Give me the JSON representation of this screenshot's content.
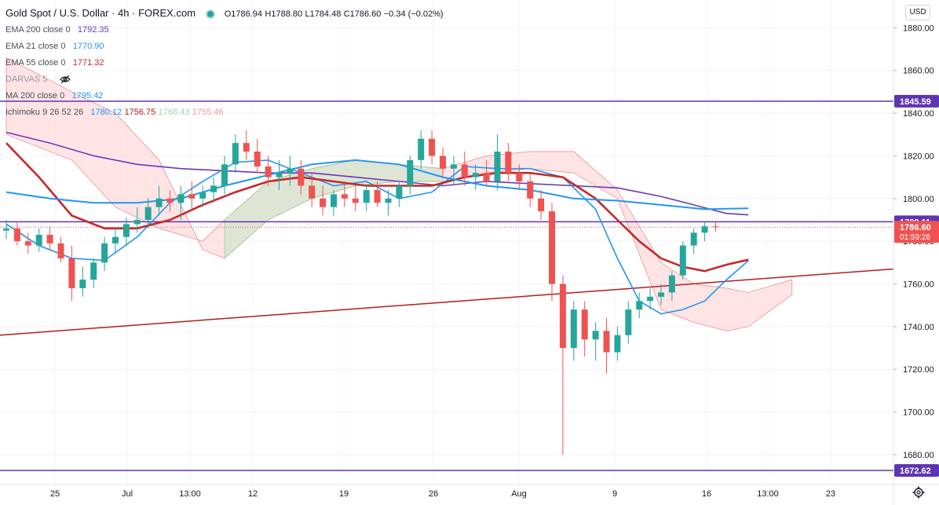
{
  "header": {
    "title": "Gold Spot / U.S. Dollar · 4h · FOREX.com",
    "status_color": "#26a69a",
    "open": "O1786.94",
    "high": "H1788.80",
    "low": "L1784.48",
    "close": "C1786.60",
    "change": "−0.34 (−0.02%)"
  },
  "indicators": [
    {
      "name": "EMA 200 close 0",
      "value": "1792.35",
      "color": "#673ab7"
    },
    {
      "name": "EMA 21 close 0",
      "value": "1770.90",
      "color": "#2196f3"
    },
    {
      "name": "EMA 55 close 0",
      "value": "1771.32",
      "color": "#c62828"
    },
    {
      "name": "DARVAS 5",
      "value": "",
      "color": "#9598a1"
    },
    {
      "name": "MA 200 close 0",
      "value": "1795.42",
      "color": "#2196f3"
    }
  ],
  "ichimoku": {
    "name": "Ichimoku 9 26 52 26",
    "values": [
      "1780.12",
      "1756.75",
      "1768.43",
      "1755.46"
    ],
    "colors": [
      "#2196f3",
      "#b71c1c",
      "#a5d6a7",
      "#ef9a9a"
    ]
  },
  "currency_label": "USD",
  "price_axis": {
    "ticks": [
      "1880.00",
      "1860.00",
      "1840.00",
      "1820.00",
      "1800.00",
      "1780.00",
      "1760.00",
      "1740.00",
      "1720.00",
      "1700.00",
      "1680.00"
    ],
    "tick_values": [
      1880,
      1860,
      1840,
      1820,
      1800,
      1780,
      1760,
      1740,
      1720,
      1700,
      1680
    ]
  },
  "price_tags": {
    "upper_level": "1845.59",
    "resistance": "1789.11",
    "last_price": "1786.60",
    "countdown": "01:59:28",
    "lower_level": "1672.62"
  },
  "time_axis": {
    "labels": [
      "25",
      "Jul",
      "13:00",
      "12",
      "19",
      "26",
      "Aug",
      "9",
      "16",
      "13:00",
      "23"
    ]
  },
  "colors": {
    "candle_up": "#26a69a",
    "candle_down": "#ef5350",
    "horizontal_levels": "#5e35b1",
    "trendline": "#b71c1c",
    "cloud_bull": "#c8e6c9",
    "cloud_bear": "#ffcdd2"
  },
  "chart_data": {
    "type": "candlestick",
    "symbol": "Gold Spot / U.S. Dollar",
    "timeframe": "4h",
    "ylim": [
      1666,
      1893
    ],
    "last_close": 1786.6,
    "horizontal_levels": [
      1845.59,
      1789.11,
      1672.62
    ],
    "trendline": {
      "from": [
        "Jun 21",
        1736
      ],
      "to": [
        "Aug 24",
        1767
      ]
    },
    "series": [
      {
        "name": "EMA 200",
        "points": [
          [
            0,
            1831
          ],
          [
            4,
            1826
          ],
          [
            8,
            1820
          ],
          [
            12,
            1816
          ],
          [
            16,
            1814
          ],
          [
            20,
            1813
          ],
          [
            24,
            1812
          ],
          [
            28,
            1812
          ],
          [
            32,
            1810
          ],
          [
            36,
            1808
          ],
          [
            40,
            1806
          ],
          [
            44,
            1808
          ],
          [
            48,
            1807
          ],
          [
            52,
            1806
          ],
          [
            56,
            1805
          ],
          [
            60,
            1801
          ],
          [
            63,
            1797
          ],
          [
            66,
            1793
          ],
          [
            68,
            1792.35
          ]
        ]
      },
      {
        "name": "EMA 21",
        "points": [
          [
            0,
            1788
          ],
          [
            3,
            1778
          ],
          [
            6,
            1772
          ],
          [
            9,
            1771
          ],
          [
            12,
            1782
          ],
          [
            15,
            1798
          ],
          [
            18,
            1808
          ],
          [
            21,
            1817
          ],
          [
            24,
            1818
          ],
          [
            27,
            1812
          ],
          [
            30,
            1806
          ],
          [
            33,
            1808
          ],
          [
            36,
            1800
          ],
          [
            39,
            1803
          ],
          [
            42,
            1815
          ],
          [
            45,
            1814
          ],
          [
            48,
            1814
          ],
          [
            51,
            1810
          ],
          [
            54,
            1795
          ],
          [
            56,
            1772
          ],
          [
            58,
            1752
          ],
          [
            60,
            1746
          ],
          [
            62,
            1748
          ],
          [
            64,
            1752
          ],
          [
            66,
            1762
          ],
          [
            68,
            1770.9
          ]
        ]
      },
      {
        "name": "EMA 55",
        "points": [
          [
            0,
            1826
          ],
          [
            3,
            1810
          ],
          [
            6,
            1792
          ],
          [
            9,
            1786
          ],
          [
            12,
            1786
          ],
          [
            15,
            1790
          ],
          [
            18,
            1797
          ],
          [
            21,
            1803
          ],
          [
            24,
            1808
          ],
          [
            27,
            1810
          ],
          [
            30,
            1808
          ],
          [
            33,
            1806
          ],
          [
            36,
            1806
          ],
          [
            39,
            1806
          ],
          [
            42,
            1810
          ],
          [
            45,
            1812
          ],
          [
            48,
            1812
          ],
          [
            51,
            1810
          ],
          [
            54,
            1800
          ],
          [
            56,
            1790
          ],
          [
            58,
            1780
          ],
          [
            60,
            1772
          ],
          [
            62,
            1768
          ],
          [
            64,
            1766
          ],
          [
            66,
            1769
          ],
          [
            68,
            1771.32
          ]
        ]
      },
      {
        "name": "MA 200",
        "points": [
          [
            0,
            1803
          ],
          [
            4,
            1800
          ],
          [
            8,
            1798
          ],
          [
            12,
            1798
          ],
          [
            16,
            1800
          ],
          [
            20,
            1806
          ],
          [
            24,
            1811
          ],
          [
            28,
            1816
          ],
          [
            32,
            1818
          ],
          [
            36,
            1816
          ],
          [
            40,
            1810
          ],
          [
            44,
            1806
          ],
          [
            48,
            1804
          ],
          [
            52,
            1800
          ],
          [
            56,
            1799
          ],
          [
            60,
            1797
          ],
          [
            64,
            1795
          ],
          [
            68,
            1795.42
          ]
        ]
      }
    ],
    "candles": [
      [
        0,
        1785,
        1790,
        1781,
        1786
      ],
      [
        1,
        1786,
        1789,
        1778,
        1780
      ],
      [
        2,
        1780,
        1784,
        1774,
        1778
      ],
      [
        3,
        1778,
        1786,
        1775,
        1783
      ],
      [
        4,
        1783,
        1787,
        1776,
        1779
      ],
      [
        5,
        1779,
        1782,
        1770,
        1772
      ],
      [
        6,
        1772,
        1778,
        1752,
        1758
      ],
      [
        7,
        1758,
        1768,
        1754,
        1762
      ],
      [
        8,
        1762,
        1772,
        1758,
        1770
      ],
      [
        9,
        1770,
        1782,
        1766,
        1779
      ],
      [
        10,
        1779,
        1786,
        1774,
        1782
      ],
      [
        11,
        1782,
        1791,
        1778,
        1788
      ],
      [
        12,
        1788,
        1796,
        1784,
        1790
      ],
      [
        13,
        1790,
        1800,
        1786,
        1796
      ],
      [
        14,
        1796,
        1806,
        1792,
        1800
      ],
      [
        15,
        1800,
        1804,
        1794,
        1798
      ],
      [
        16,
        1798,
        1806,
        1790,
        1802
      ],
      [
        17,
        1802,
        1808,
        1795,
        1800
      ],
      [
        18,
        1800,
        1806,
        1796,
        1803
      ],
      [
        19,
        1803,
        1810,
        1798,
        1806
      ],
      [
        20,
        1806,
        1820,
        1802,
        1816
      ],
      [
        21,
        1816,
        1830,
        1812,
        1826
      ],
      [
        22,
        1826,
        1832,
        1818,
        1822
      ],
      [
        23,
        1822,
        1828,
        1812,
        1815
      ],
      [
        24,
        1815,
        1820,
        1806,
        1810
      ],
      [
        25,
        1810,
        1818,
        1804,
        1812
      ],
      [
        26,
        1812,
        1820,
        1806,
        1814
      ],
      [
        27,
        1814,
        1818,
        1802,
        1806
      ],
      [
        28,
        1806,
        1812,
        1796,
        1800
      ],
      [
        29,
        1800,
        1806,
        1792,
        1796
      ],
      [
        30,
        1796,
        1804,
        1792,
        1802
      ],
      [
        31,
        1802,
        1808,
        1796,
        1800
      ],
      [
        32,
        1800,
        1806,
        1794,
        1798
      ],
      [
        33,
        1798,
        1806,
        1794,
        1804
      ],
      [
        34,
        1804,
        1808,
        1796,
        1798
      ],
      [
        35,
        1798,
        1804,
        1792,
        1800
      ],
      [
        36,
        1800,
        1808,
        1796,
        1806
      ],
      [
        37,
        1806,
        1820,
        1802,
        1818
      ],
      [
        38,
        1818,
        1832,
        1814,
        1828
      ],
      [
        39,
        1828,
        1832,
        1816,
        1820
      ],
      [
        40,
        1820,
        1824,
        1810,
        1814
      ],
      [
        41,
        1814,
        1820,
        1806,
        1816
      ],
      [
        42,
        1816,
        1822,
        1806,
        1810
      ],
      [
        43,
        1810,
        1816,
        1804,
        1812
      ],
      [
        44,
        1812,
        1818,
        1806,
        1808
      ],
      [
        45,
        1808,
        1830,
        1804,
        1822
      ],
      [
        46,
        1822,
        1826,
        1808,
        1812
      ],
      [
        47,
        1812,
        1816,
        1804,
        1808
      ],
      [
        48,
        1808,
        1812,
        1796,
        1800
      ],
      [
        49,
        1800,
        1804,
        1790,
        1794
      ],
      [
        50,
        1794,
        1798,
        1752,
        1760
      ],
      [
        51,
        1760,
        1764,
        1680,
        1730
      ],
      [
        52,
        1730,
        1752,
        1724,
        1748
      ],
      [
        53,
        1748,
        1752,
        1726,
        1734
      ],
      [
        54,
        1734,
        1742,
        1724,
        1738
      ],
      [
        55,
        1738,
        1744,
        1718,
        1728
      ],
      [
        56,
        1728,
        1740,
        1724,
        1736
      ],
      [
        57,
        1736,
        1752,
        1732,
        1748
      ],
      [
        58,
        1748,
        1756,
        1744,
        1752
      ],
      [
        59,
        1752,
        1758,
        1748,
        1754
      ],
      [
        60,
        1754,
        1760,
        1750,
        1756
      ],
      [
        61,
        1756,
        1766,
        1752,
        1764
      ],
      [
        62,
        1764,
        1780,
        1762,
        1778
      ],
      [
        63,
        1778,
        1786,
        1774,
        1784
      ],
      [
        64,
        1784,
        1789,
        1780,
        1787
      ],
      [
        65,
        1786.94,
        1788.8,
        1784.48,
        1786.6
      ]
    ]
  }
}
